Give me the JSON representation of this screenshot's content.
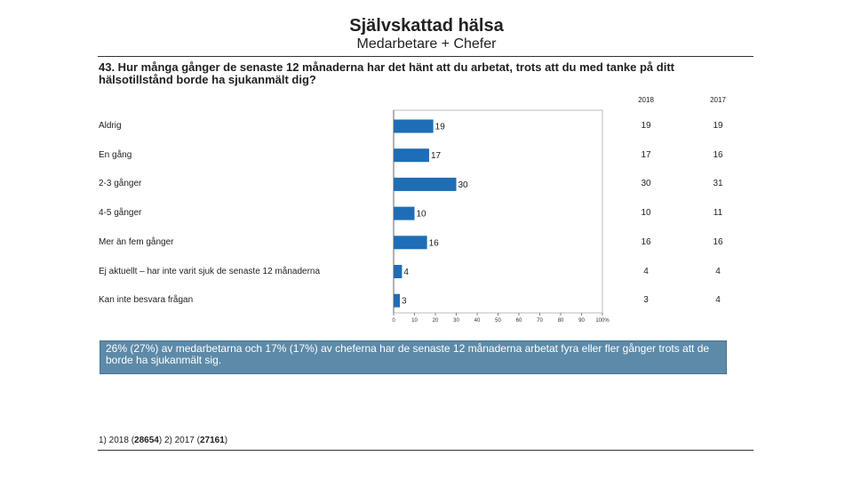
{
  "header": {
    "title": "Självskattad hälsa",
    "subtitle": "Medarbetare + Chefer"
  },
  "question": "43. Hur många gånger de senaste 12 månaderna har det hänt att du arbetat, trots att du med tanke på ditt hälsotillstånd borde ha sjukanmält dig?",
  "columns": [
    "2018",
    "2017"
  ],
  "chart_data": {
    "type": "bar",
    "orientation": "horizontal",
    "categories": [
      "Aldrig",
      "En gång",
      "2-3 gånger",
      "4-5 gånger",
      "Mer än fem gånger",
      "Ej aktuellt – har inte varit sjuk de senaste 12 månaderna",
      "Kan inte besvara frågan"
    ],
    "series": [
      {
        "name": "2018",
        "values": [
          19,
          17,
          30,
          10,
          16,
          4,
          3
        ]
      }
    ],
    "comparison_2017": [
      19,
      16,
      31,
      11,
      16,
      4,
      4
    ],
    "xlim": [
      0,
      100
    ],
    "x_ticks": [
      "0",
      "10",
      "20",
      "30",
      "40",
      "50",
      "60",
      "70",
      "80",
      "90",
      "100%"
    ],
    "bar_color": "#1f6db5"
  },
  "note": "26% (27%) av medarbetarna och 17% (17%) av cheferna har de senaste 12 månaderna arbetat fyra eller fler gånger trots att de borde ha sjukanmält sig.",
  "footer": {
    "part1": "1) 2018 (",
    "n2018": "28654",
    "part2": ")   2) 2017 (",
    "n2017": "27161",
    "part3": ")"
  }
}
